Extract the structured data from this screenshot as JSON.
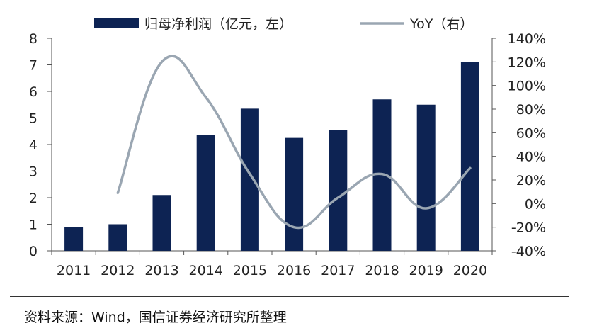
{
  "chart_data": {
    "type": "bar+line",
    "categories": [
      "2011",
      "2012",
      "2013",
      "2014",
      "2015",
      "2016",
      "2017",
      "2018",
      "2019",
      "2020"
    ],
    "series": [
      {
        "name": "归母净利润（亿元，左）",
        "kind": "bar",
        "axis": "left",
        "color": "#0d2353",
        "values": [
          0.9,
          1.0,
          2.1,
          4.35,
          5.35,
          4.25,
          4.55,
          5.7,
          5.5,
          7.1
        ]
      },
      {
        "name": "YoY（右）",
        "kind": "line",
        "axis": "right",
        "color": "#9aa6b2",
        "values": [
          null,
          9,
          120,
          90,
          25,
          -20,
          5,
          25,
          -4,
          30
        ]
      }
    ],
    "left_axis": {
      "min": 0,
      "max": 8,
      "ticks": [
        "0",
        "1",
        "2",
        "3",
        "4",
        "5",
        "6",
        "7",
        "8"
      ]
    },
    "right_axis": {
      "min": -40,
      "max": 140,
      "ticks": [
        "-40%",
        "-20%",
        "0%",
        "20%",
        "40%",
        "60%",
        "80%",
        "100%",
        "120%",
        "140%"
      ]
    },
    "legend_position": "top"
  },
  "source": "资料来源：Wind，国信证券经济研究所整理"
}
